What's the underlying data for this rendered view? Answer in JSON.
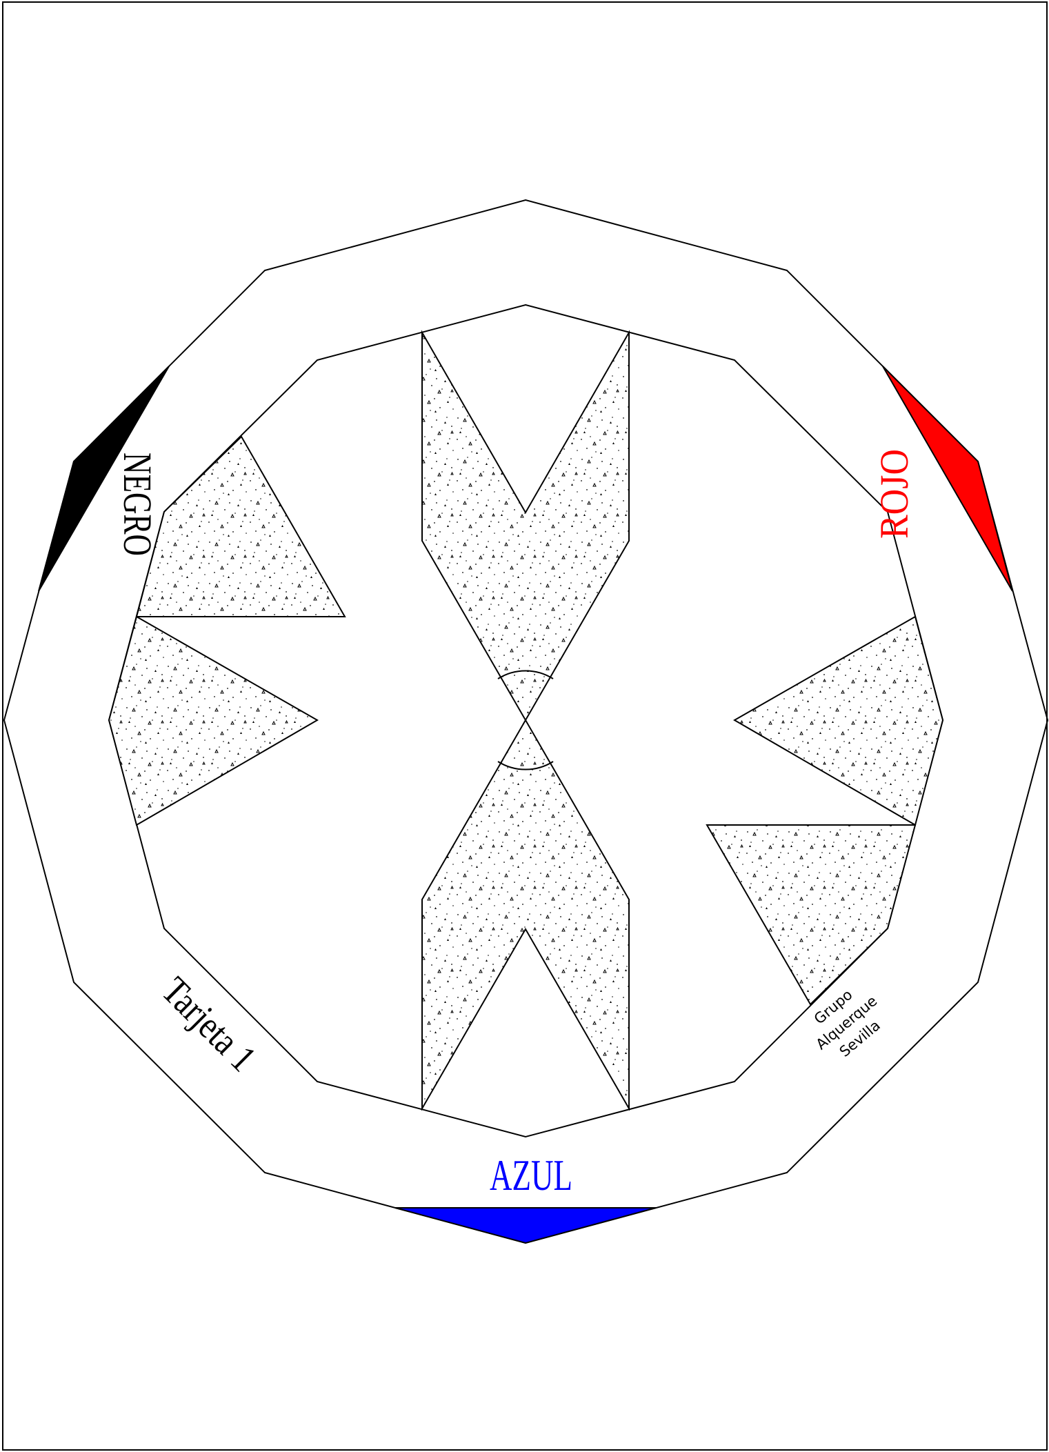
{
  "card": {
    "player_labels": {
      "negro": "NEGRO",
      "rojo": "ROJO",
      "azul": "AZUL"
    },
    "card_title": "Tarjeta 1",
    "credit_lines": [
      "Grupo",
      "Alquerque",
      "Sevilla"
    ],
    "colors": {
      "negro": "#000000",
      "rojo": "#ff0000",
      "azul": "#0000ff",
      "outline": "#000000",
      "background": "#ffffff"
    }
  }
}
